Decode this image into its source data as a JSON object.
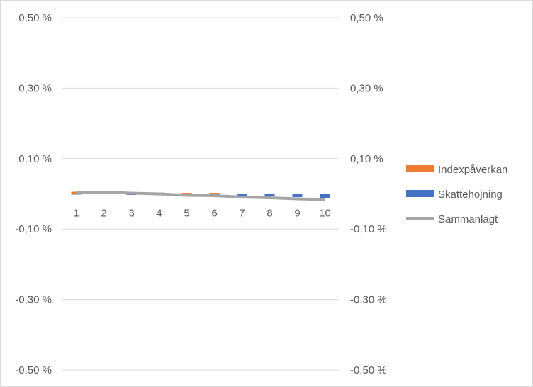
{
  "chart_data": {
    "type": "bar",
    "categories": [
      "1",
      "2",
      "3",
      "4",
      "5",
      "6",
      "7",
      "8",
      "9",
      "10"
    ],
    "series": [
      {
        "name": "Indexpåverkan",
        "type": "bar",
        "color": "#ED7D31",
        "values": [
          0.006,
          0.001,
          0.004,
          0.004,
          0.003,
          0.003,
          0.001,
          0.001,
          0.001,
          0.0
        ]
      },
      {
        "name": "Skattehöjning",
        "type": "bar",
        "color": "#4472C4",
        "values": [
          -0.002,
          -0.001,
          -0.003,
          -0.004,
          0.0,
          -0.003,
          -0.005,
          -0.007,
          -0.009,
          -0.013
        ]
      },
      {
        "name": "Sammanlagt",
        "type": "line",
        "color": "#A5A5A5",
        "values": [
          0.005,
          0.005,
          0.002,
          0.0,
          -0.004,
          -0.005,
          -0.009,
          -0.011,
          -0.014,
          -0.016
        ]
      }
    ],
    "ylim": [
      -0.5,
      0.5
    ],
    "yticks": [
      "0,50 %",
      "0,30 %",
      "0,10 %",
      "-0,10 %",
      "-0,30 %",
      "-0,50 %"
    ],
    "ytick_values": [
      0.5,
      0.3,
      0.1,
      -0.1,
      -0.3,
      -0.5
    ],
    "secondary_axis": true,
    "grid": true,
    "legend": "right"
  }
}
